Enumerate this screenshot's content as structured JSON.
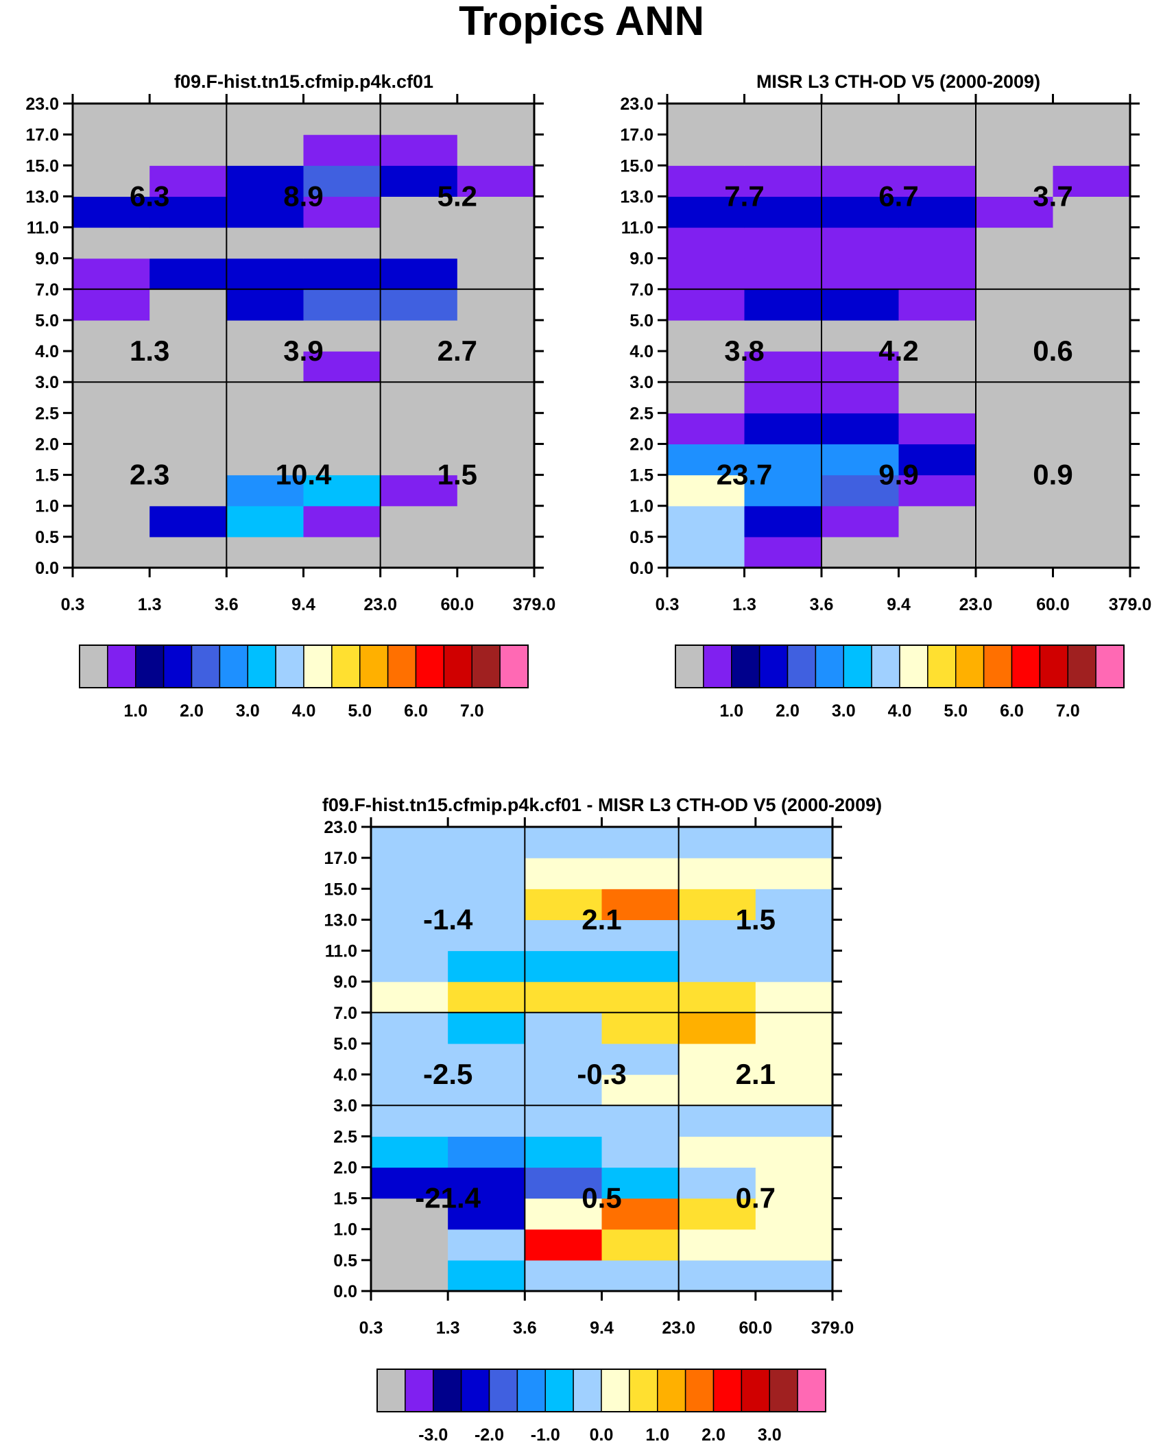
{
  "title": "Tropics ANN",
  "colors": {
    "seq": [
      "#c0c0c0",
      "#8020f0",
      "#00008c",
      "#0000d0",
      "#4060e0",
      "#1e90ff",
      "#00bfff",
      "#a0d0ff",
      "#ffffd0",
      "#ffe030",
      "#ffb000",
      "#ff7000",
      "#ff0000",
      "#d00000",
      "#a02020",
      "#ff69b4"
    ],
    "div": [
      "#c0c0c0",
      "#8020f0",
      "#00008c",
      "#0000d0",
      "#4060e0",
      "#1e90ff",
      "#00bfff",
      "#a0d0ff",
      "#ffffd0",
      "#ffe030",
      "#ffb000",
      "#ff7000",
      "#ff0000",
      "#d00000",
      "#a02020",
      "#ff69b4"
    ]
  },
  "chart_data": [
    {
      "type": "heatmap",
      "title": "f09.F-hist.tn15.cfmip.p4k.cf01",
      "x_ticks": [
        "0.3",
        "1.3",
        "3.6",
        "9.4",
        "23.0",
        "60.0",
        "379.0"
      ],
      "y_ticks": [
        "0.0",
        "0.5",
        "1.0",
        "1.5",
        "2.0",
        "2.5",
        "3.0",
        "4.0",
        "5.0",
        "7.0",
        "9.0",
        "11.0",
        "13.0",
        "15.0",
        "17.0",
        "23.0"
      ],
      "palette": "seq",
      "levels": [
        0.5,
        1.0,
        1.5,
        2.0,
        2.5,
        3.0,
        3.5,
        4.0,
        4.5,
        5.0,
        5.5,
        6.0,
        6.5,
        7.0
      ],
      "cells": [
        [
          0.2,
          0.2,
          0.2,
          0.2,
          0.2,
          0.2
        ],
        [
          0.2,
          1.7,
          3.2,
          0.8,
          0.2,
          0.2
        ],
        [
          0.2,
          0.2,
          2.7,
          3.2,
          0.8,
          0.2
        ],
        [
          0.2,
          0.2,
          0.2,
          0.2,
          0.2,
          0.2
        ],
        [
          0.2,
          0.2,
          0.2,
          0.2,
          0.2,
          0.2
        ],
        [
          0.2,
          0.2,
          0.2,
          0.2,
          0.2,
          0.2
        ],
        [
          0.2,
          0.2,
          0.2,
          0.8,
          0.2,
          0.2
        ],
        [
          0.2,
          0.2,
          0.2,
          0.2,
          0.2,
          0.2
        ],
        [
          0.8,
          0.2,
          1.7,
          2.2,
          2.2,
          0.2
        ],
        [
          0.8,
          1.7,
          1.7,
          1.7,
          1.7,
          0.2
        ],
        [
          0.2,
          0.2,
          0.2,
          0.2,
          0.2,
          0.2
        ],
        [
          1.7,
          1.7,
          1.7,
          0.8,
          0.2,
          0.2
        ],
        [
          0.2,
          0.8,
          1.7,
          2.2,
          1.7,
          0.8
        ],
        [
          0.2,
          0.2,
          0.2,
          0.8,
          0.8,
          0.2
        ],
        [
          0.2,
          0.2,
          0.2,
          0.2,
          0.2,
          0.2
        ]
      ],
      "box_labels": [
        {
          "x": "1.3",
          "y": "13.0",
          "text": "6.3"
        },
        {
          "x": "9.4",
          "y": "13.0",
          "text": "8.9"
        },
        {
          "x": "60.0",
          "y": "13.0",
          "text": "5.2"
        },
        {
          "x": "1.3",
          "y": "4.0",
          "text": "1.3"
        },
        {
          "x": "9.4",
          "y": "4.0",
          "text": "3.9"
        },
        {
          "x": "60.0",
          "y": "4.0",
          "text": "2.7"
        },
        {
          "x": "1.3",
          "y": "1.5",
          "text": "2.3"
        },
        {
          "x": "9.4",
          "y": "1.5",
          "text": "10.4"
        },
        {
          "x": "60.0",
          "y": "1.5",
          "text": "1.5"
        }
      ],
      "colorbar_labels": [
        "1.0",
        "2.0",
        "3.0",
        "4.0",
        "5.0",
        "6.0",
        "7.0"
      ]
    },
    {
      "type": "heatmap",
      "title": "MISR L3 CTH-OD V5 (2000-2009)",
      "x_ticks": [
        "0.3",
        "1.3",
        "3.6",
        "9.4",
        "23.0",
        "60.0",
        "379.0"
      ],
      "y_ticks": [
        "0.0",
        "0.5",
        "1.0",
        "1.5",
        "2.0",
        "2.5",
        "3.0",
        "4.0",
        "5.0",
        "7.0",
        "9.0",
        "11.0",
        "13.0",
        "15.0",
        "17.0",
        "23.0"
      ],
      "palette": "seq",
      "levels": [
        0.5,
        1.0,
        1.5,
        2.0,
        2.5,
        3.0,
        3.5,
        4.0,
        4.5,
        5.0,
        5.5,
        6.0,
        6.5,
        7.0
      ],
      "cells": [
        [
          3.7,
          0.8,
          0.2,
          0.2,
          0.2,
          0.2
        ],
        [
          3.7,
          1.7,
          0.8,
          0.2,
          0.2,
          0.2
        ],
        [
          4.2,
          2.7,
          2.2,
          0.8,
          0.2,
          0.2
        ],
        [
          2.7,
          2.7,
          2.7,
          1.7,
          0.2,
          0.2
        ],
        [
          0.8,
          1.7,
          1.7,
          0.8,
          0.2,
          0.2
        ],
        [
          0.2,
          0.8,
          0.8,
          0.2,
          0.2,
          0.2
        ],
        [
          0.2,
          0.8,
          0.8,
          0.2,
          0.2,
          0.2
        ],
        [
          0.2,
          0.2,
          0.2,
          0.2,
          0.2,
          0.2
        ],
        [
          0.8,
          1.7,
          1.7,
          0.8,
          0.2,
          0.2
        ],
        [
          0.8,
          0.8,
          0.8,
          0.8,
          0.2,
          0.2
        ],
        [
          0.8,
          0.8,
          0.8,
          0.8,
          0.2,
          0.2
        ],
        [
          1.7,
          1.7,
          1.7,
          1.7,
          0.8,
          0.2
        ],
        [
          0.8,
          0.8,
          0.8,
          0.8,
          0.2,
          0.8
        ],
        [
          0.2,
          0.2,
          0.2,
          0.2,
          0.2,
          0.2
        ],
        [
          0.2,
          0.2,
          0.2,
          0.2,
          0.2,
          0.2
        ]
      ],
      "box_labels": [
        {
          "x": "1.3",
          "y": "13.0",
          "text": "7.7"
        },
        {
          "x": "9.4",
          "y": "13.0",
          "text": "6.7"
        },
        {
          "x": "60.0",
          "y": "13.0",
          "text": "3.7"
        },
        {
          "x": "1.3",
          "y": "4.0",
          "text": "3.8"
        },
        {
          "x": "9.4",
          "y": "4.0",
          "text": "4.2"
        },
        {
          "x": "60.0",
          "y": "4.0",
          "text": "0.6"
        },
        {
          "x": "1.3",
          "y": "1.5",
          "text": "23.7"
        },
        {
          "x": "9.4",
          "y": "1.5",
          "text": "9.9"
        },
        {
          "x": "60.0",
          "y": "1.5",
          "text": "0.9"
        }
      ],
      "colorbar_labels": [
        "1.0",
        "2.0",
        "3.0",
        "4.0",
        "5.0",
        "6.0",
        "7.0"
      ]
    },
    {
      "type": "heatmap",
      "title": "f09.F-hist.tn15.cfmip.p4k.cf01 - MISR L3 CTH-OD V5 (2000-2009)",
      "x_ticks": [
        "0.3",
        "1.3",
        "3.6",
        "9.4",
        "23.0",
        "60.0",
        "379.0"
      ],
      "y_ticks": [
        "0.0",
        "0.5",
        "1.0",
        "1.5",
        "2.0",
        "2.5",
        "3.0",
        "4.0",
        "5.0",
        "7.0",
        "9.0",
        "11.0",
        "13.0",
        "15.0",
        "17.0",
        "23.0"
      ],
      "palette": "div",
      "levels": [
        -3.5,
        -3.0,
        -2.5,
        -2.0,
        -1.5,
        -1.0,
        -0.5,
        0.0,
        0.5,
        1.0,
        1.5,
        2.0,
        2.5,
        3.0
      ],
      "cells": [
        [
          -5.0,
          -0.7,
          -0.2,
          -0.2,
          -0.2,
          -0.2
        ],
        [
          -5.0,
          -0.2,
          2.2,
          0.7,
          0.2,
          0.2
        ],
        [
          -5.0,
          -2.2,
          0.2,
          1.7,
          0.7,
          0.2
        ],
        [
          -2.2,
          -2.2,
          -1.7,
          -0.7,
          -0.2,
          0.2
        ],
        [
          -0.7,
          -1.2,
          -0.7,
          -0.2,
          0.2,
          0.2
        ],
        [
          -0.2,
          -0.2,
          -0.2,
          -0.2,
          -0.2,
          -0.2
        ],
        [
          -0.2,
          -0.2,
          -0.2,
          0.2,
          0.2,
          0.2
        ],
        [
          -0.2,
          -0.2,
          -0.2,
          -0.2,
          0.2,
          0.2
        ],
        [
          -0.2,
          -0.7,
          -0.2,
          0.7,
          1.2,
          0.2
        ],
        [
          0.2,
          0.7,
          0.7,
          0.7,
          0.7,
          0.2
        ],
        [
          -0.2,
          -0.7,
          -0.7,
          -0.7,
          -0.2,
          -0.2
        ],
        [
          -0.2,
          -0.2,
          -0.2,
          -0.2,
          -0.2,
          -0.2
        ],
        [
          -0.2,
          -0.2,
          0.7,
          1.7,
          0.7,
          -0.2
        ],
        [
          -0.2,
          -0.2,
          0.2,
          0.2,
          0.2,
          0.2
        ],
        [
          -0.2,
          -0.2,
          -0.2,
          -0.2,
          -0.2,
          -0.2
        ]
      ],
      "box_labels": [
        {
          "x": "1.3",
          "y": "13.0",
          "text": "-1.4"
        },
        {
          "x": "9.4",
          "y": "13.0",
          "text": "2.1"
        },
        {
          "x": "60.0",
          "y": "13.0",
          "text": "1.5"
        },
        {
          "x": "1.3",
          "y": "4.0",
          "text": "-2.5"
        },
        {
          "x": "9.4",
          "y": "4.0",
          "text": "-0.3"
        },
        {
          "x": "60.0",
          "y": "4.0",
          "text": "2.1"
        },
        {
          "x": "1.3",
          "y": "1.5",
          "text": "-21.4"
        },
        {
          "x": "9.4",
          "y": "1.5",
          "text": "0.5"
        },
        {
          "x": "60.0",
          "y": "1.5",
          "text": "0.7"
        }
      ],
      "colorbar_labels": [
        "-3.0",
        "-2.0",
        "-1.0",
        "0.0",
        "1.0",
        "2.0",
        "3.0"
      ]
    }
  ]
}
